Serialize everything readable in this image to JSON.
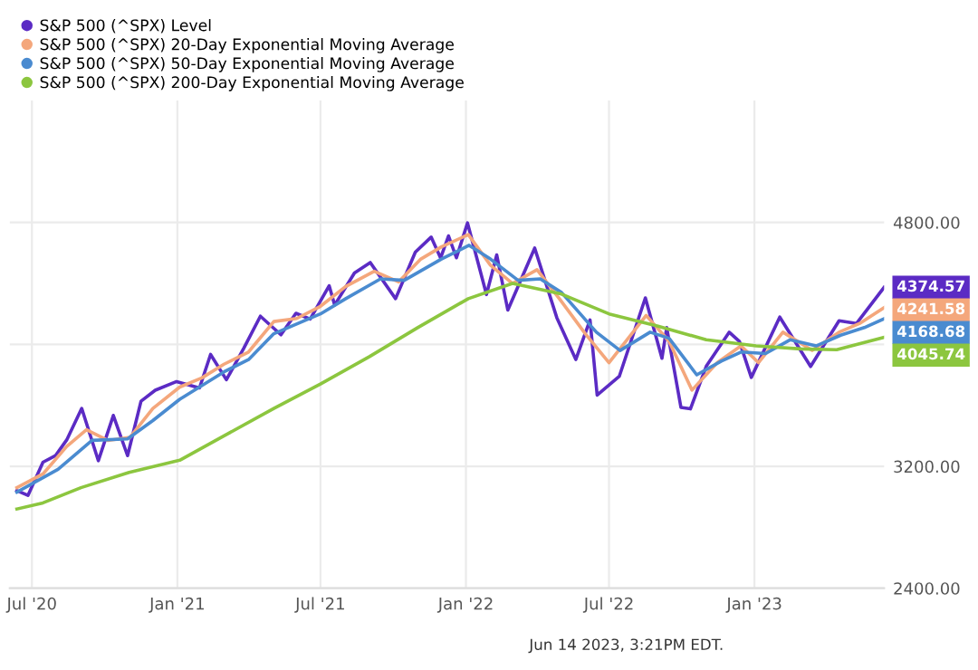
{
  "chart_data": {
    "type": "line",
    "xlim": [
      "2020-06-03",
      "2023-06-14"
    ],
    "xticks": [
      {
        "value": "2020-07-01",
        "label": "Jul '20"
      },
      {
        "value": "2021-01-01",
        "label": "Jan '21"
      },
      {
        "value": "2021-07-01",
        "label": "Jul '21"
      },
      {
        "value": "2022-01-01",
        "label": "Jan '22"
      },
      {
        "value": "2022-07-01",
        "label": "Jul '22"
      },
      {
        "value": "2023-01-01",
        "label": "Jan '23"
      }
    ],
    "ylim": [
      2400,
      5600
    ],
    "yticks": [
      {
        "value": 2400,
        "label": "2400.00"
      },
      {
        "value": 3200,
        "label": "3200.00"
      },
      {
        "value": 4000,
        "label": null
      },
      {
        "value": 4800,
        "label": "4800.00"
      }
    ],
    "grid": true,
    "legend": "top left",
    "series": [
      {
        "name": "S&P 500 (^SPX) Level",
        "color": "#5b2bc4",
        "x": [
          "2020-06-12",
          "2020-06-26",
          "2020-07-15",
          "2020-07-31",
          "2020-08-14",
          "2020-09-02",
          "2020-09-23",
          "2020-10-12",
          "2020-10-30",
          "2020-11-16",
          "2020-12-04",
          "2020-12-31",
          "2021-01-29",
          "2021-02-12",
          "2021-03-04",
          "2021-03-26",
          "2021-04-16",
          "2021-05-12",
          "2021-05-31",
          "2021-06-18",
          "2021-07-12",
          "2021-07-19",
          "2021-08-13",
          "2021-09-02",
          "2021-10-04",
          "2021-10-29",
          "2021-11-18",
          "2021-11-30",
          "2021-12-10",
          "2021-12-20",
          "2022-01-03",
          "2022-01-27",
          "2022-02-09",
          "2022-02-23",
          "2022-03-29",
          "2022-04-26",
          "2022-05-20",
          "2022-06-07",
          "2022-06-16",
          "2022-07-14",
          "2022-08-16",
          "2022-09-06",
          "2022-09-12",
          "2022-09-30",
          "2022-10-12",
          "2022-11-01",
          "2022-11-30",
          "2022-12-13",
          "2022-12-28",
          "2023-02-02",
          "2023-03-13",
          "2023-04-18",
          "2023-05-10",
          "2023-06-14"
        ],
        "values": [
          3041,
          3009,
          3227,
          3271,
          3373,
          3580,
          3237,
          3534,
          3270,
          3627,
          3699,
          3756,
          3714,
          3934,
          3768,
          3975,
          4185,
          4063,
          4204,
          4166,
          4385,
          4258,
          4468,
          4537,
          4300,
          4605,
          4704,
          4567,
          4712,
          4568,
          4797,
          4327,
          4587,
          4225,
          4632,
          4175,
          3901,
          4160,
          3667,
          3790,
          4305,
          3909,
          4110,
          3586,
          3577,
          3856,
          4080,
          4019,
          3783,
          4179,
          3855,
          4155,
          4137,
          4374.57
        ]
      },
      {
        "name": "S&P 500 (^SPX) 20-Day Exponential Moving Average",
        "color": "#f4a77c",
        "x": [
          "2020-06-12",
          "2020-07-15",
          "2020-08-14",
          "2020-09-08",
          "2020-10-05",
          "2020-11-02",
          "2020-12-01",
          "2021-01-04",
          "2021-02-01",
          "2021-03-01",
          "2021-04-01",
          "2021-05-03",
          "2021-06-01",
          "2021-07-01",
          "2021-08-02",
          "2021-09-07",
          "2021-10-08",
          "2021-11-05",
          "2021-12-01",
          "2022-01-04",
          "2022-02-01",
          "2022-03-01",
          "2022-04-01",
          "2022-05-02",
          "2022-06-01",
          "2022-07-01",
          "2022-08-17",
          "2022-09-15",
          "2022-10-14",
          "2022-11-15",
          "2022-12-15",
          "2023-01-06",
          "2023-02-06",
          "2023-03-15",
          "2023-04-18",
          "2023-05-15",
          "2023-06-14"
        ],
        "values": [
          3060,
          3150,
          3330,
          3440,
          3370,
          3390,
          3580,
          3720,
          3780,
          3870,
          3950,
          4150,
          4170,
          4250,
          4380,
          4480,
          4410,
          4560,
          4640,
          4720,
          4520,
          4400,
          4490,
          4280,
          4070,
          3880,
          4190,
          4020,
          3700,
          3880,
          3990,
          3880,
          4080,
          3960,
          4080,
          4140,
          4241.58
        ]
      },
      {
        "name": "S&P 500 (^SPX) 50-Day Exponential Moving Average",
        "color": "#4a8bd0",
        "x": [
          "2020-06-12",
          "2020-08-03",
          "2020-09-15",
          "2020-10-30",
          "2020-12-01",
          "2021-01-04",
          "2021-03-01",
          "2021-04-01",
          "2021-05-03",
          "2021-07-01",
          "2021-08-02",
          "2021-09-15",
          "2021-10-15",
          "2021-12-01",
          "2022-01-05",
          "2022-02-01",
          "2022-03-08",
          "2022-04-05",
          "2022-05-02",
          "2022-06-15",
          "2022-07-15",
          "2022-08-22",
          "2022-09-15",
          "2022-10-20",
          "2022-11-20",
          "2022-12-15",
          "2023-01-15",
          "2023-02-15",
          "2023-03-20",
          "2023-04-20",
          "2023-05-20",
          "2023-06-14"
        ],
        "values": [
          3030,
          3180,
          3370,
          3380,
          3500,
          3640,
          3820,
          3900,
          4070,
          4200,
          4300,
          4430,
          4420,
          4560,
          4650,
          4560,
          4420,
          4430,
          4340,
          4080,
          3960,
          4080,
          4040,
          3800,
          3890,
          3950,
          3940,
          4030,
          3990,
          4060,
          4110,
          4168.68
        ]
      },
      {
        "name": "S&P 500 (^SPX) 200-Day Exponential Moving Average",
        "color": "#8cc63f",
        "x": [
          "2020-06-12",
          "2020-07-15",
          "2020-09-01",
          "2020-11-01",
          "2021-01-04",
          "2021-03-01",
          "2021-05-03",
          "2021-07-01",
          "2021-09-01",
          "2021-11-01",
          "2022-01-04",
          "2022-03-01",
          "2022-05-02",
          "2022-07-01",
          "2022-09-01",
          "2022-11-01",
          "2023-01-03",
          "2023-03-01",
          "2023-04-15",
          "2023-06-14"
        ],
        "values": [
          2920,
          2960,
          3060,
          3160,
          3240,
          3400,
          3580,
          3740,
          3920,
          4110,
          4300,
          4400,
          4330,
          4200,
          4120,
          4030,
          3990,
          3970,
          3965,
          4045.74
        ]
      }
    ],
    "annotations": [
      {
        "text": "4374.57",
        "x": "2023-06-14",
        "y": 4374.57
      },
      {
        "text": "4241.58",
        "x": "2023-06-14",
        "y": 4241.58
      },
      {
        "text": "4168.68",
        "x": "2023-06-14",
        "y": 4168.68
      },
      {
        "text": "4045.74",
        "x": "2023-06-14",
        "y": 4045.74
      },
      "Jun 14 2023, 3:21PM EDT."
    ]
  }
}
